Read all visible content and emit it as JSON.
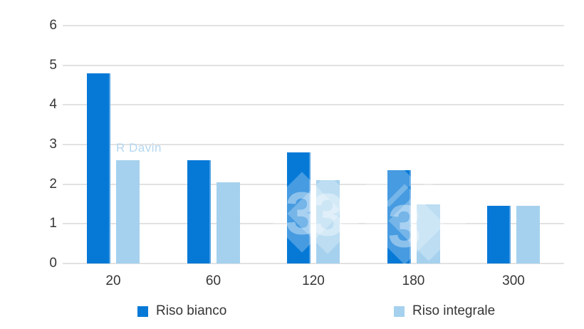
{
  "watermark": {
    "credit": "R Davin",
    "digit": "3"
  },
  "chart_data": {
    "type": "bar",
    "categories": [
      "20",
      "60",
      "120",
      "180",
      "300"
    ],
    "series": [
      {
        "name": "Riso bianco",
        "color": "#0679d7",
        "values": [
          4.8,
          2.6,
          2.8,
          2.35,
          1.45
        ]
      },
      {
        "name": "Riso integrale",
        "color": "#a5d1ee",
        "values": [
          2.6,
          2.05,
          2.1,
          1.5,
          1.45
        ]
      }
    ],
    "title": "",
    "xlabel": "",
    "ylabel": "",
    "ylim": [
      0,
      6
    ],
    "yticks": [
      0,
      1,
      2,
      3,
      4,
      5,
      6
    ],
    "grid": true,
    "gridline_color": "#e2e2e2",
    "legend_position": "bottom"
  }
}
